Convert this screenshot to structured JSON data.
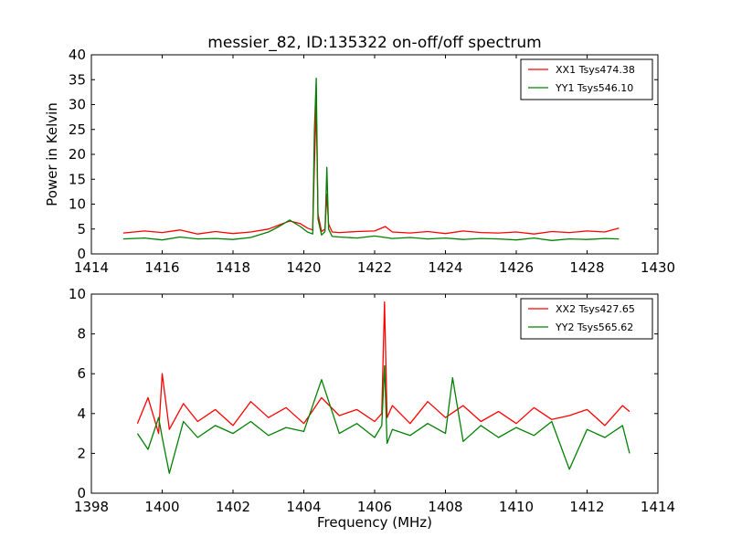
{
  "chart_data": [
    {
      "type": "line",
      "title": "messier_82, ID:135322 on-off/off spectrum",
      "xlabel": "",
      "ylabel": "Power in Kelvin",
      "xlim": [
        1414,
        1430
      ],
      "ylim": [
        0,
        40
      ],
      "xticks": [
        "1414",
        "1416",
        "1418",
        "1420",
        "1422",
        "1424",
        "1426",
        "1428",
        "1430"
      ],
      "yticks": [
        "0",
        "5",
        "10",
        "15",
        "20",
        "25",
        "30",
        "35",
        "40"
      ],
      "legend_position": "top-right",
      "series": [
        {
          "name": "XX1 Tsys474.38",
          "color": "#ff0000",
          "x": [
            1414.9,
            1415.5,
            1416.0,
            1416.5,
            1417.0,
            1417.5,
            1418.0,
            1418.5,
            1419.0,
            1419.3,
            1419.6,
            1419.9,
            1420.1,
            1420.25,
            1420.3,
            1420.35,
            1420.4,
            1420.5,
            1420.6,
            1420.65,
            1420.7,
            1420.8,
            1421.0,
            1421.5,
            1422.0,
            1422.3,
            1422.5,
            1423.0,
            1423.5,
            1424.0,
            1424.5,
            1425.0,
            1425.5,
            1426.0,
            1426.5,
            1427.0,
            1427.5,
            1428.0,
            1428.5,
            1428.9
          ],
          "y": [
            4.2,
            4.6,
            4.3,
            4.8,
            4.0,
            4.5,
            4.1,
            4.4,
            5.0,
            5.8,
            6.6,
            6.1,
            5.2,
            4.8,
            18,
            30,
            8,
            4.5,
            5.0,
            12,
            6,
            4.4,
            4.3,
            4.5,
            4.6,
            5.5,
            4.4,
            4.2,
            4.5,
            4.1,
            4.6,
            4.3,
            4.2,
            4.4,
            4.0,
            4.5,
            4.3,
            4.6,
            4.4,
            5.2
          ]
        },
        {
          "name": "YY1 Tsys546.10",
          "color": "#008000",
          "x": [
            1414.9,
            1415.5,
            1416.0,
            1416.5,
            1417.0,
            1417.5,
            1418.0,
            1418.5,
            1419.0,
            1419.3,
            1419.6,
            1419.9,
            1420.1,
            1420.25,
            1420.3,
            1420.35,
            1420.4,
            1420.5,
            1420.6,
            1420.65,
            1420.7,
            1420.8,
            1421.0,
            1421.5,
            1422.0,
            1422.5,
            1423.0,
            1423.5,
            1424.0,
            1424.5,
            1425.0,
            1425.5,
            1426.0,
            1426.5,
            1427.0,
            1427.5,
            1428.0,
            1428.5,
            1428.9
          ],
          "y": [
            3.0,
            3.2,
            2.8,
            3.4,
            3.0,
            3.1,
            2.9,
            3.3,
            4.4,
            5.5,
            6.8,
            5.5,
            4.4,
            4.0,
            25,
            35.3,
            7,
            3.8,
            4.5,
            17.4,
            5,
            3.5,
            3.4,
            3.2,
            3.6,
            3.1,
            3.3,
            3.0,
            3.2,
            2.9,
            3.1,
            3.0,
            2.8,
            3.2,
            2.7,
            3.0,
            2.9,
            3.1,
            3.0
          ]
        }
      ]
    },
    {
      "type": "line",
      "title": "",
      "xlabel": "Frequency (MHz)",
      "ylabel": "",
      "xlim": [
        1398,
        1414
      ],
      "ylim": [
        0,
        10
      ],
      "xticks": [
        "1398",
        "1400",
        "1402",
        "1404",
        "1406",
        "1408",
        "1410",
        "1412",
        "1414"
      ],
      "yticks": [
        "0",
        "2",
        "4",
        "6",
        "8",
        "10"
      ],
      "legend_position": "top-right",
      "series": [
        {
          "name": "XX2 Tsys427.65",
          "color": "#ff0000",
          "x": [
            1399.3,
            1399.6,
            1399.9,
            1400.0,
            1400.2,
            1400.6,
            1401.0,
            1401.5,
            1402.0,
            1402.5,
            1403.0,
            1403.5,
            1404.0,
            1404.5,
            1405.0,
            1405.5,
            1406.0,
            1406.2,
            1406.28,
            1406.35,
            1406.5,
            1407.0,
            1407.5,
            1408.0,
            1408.5,
            1409.0,
            1409.5,
            1410.0,
            1410.5,
            1411.0,
            1411.5,
            1412.0,
            1412.5,
            1413.0,
            1413.2
          ],
          "y": [
            3.5,
            4.8,
            3.0,
            6.0,
            3.2,
            4.5,
            3.6,
            4.2,
            3.4,
            4.6,
            3.8,
            4.3,
            3.5,
            4.8,
            3.9,
            4.2,
            3.6,
            4.0,
            9.6,
            3.8,
            4.4,
            3.5,
            4.6,
            3.8,
            4.4,
            3.6,
            4.1,
            3.5,
            4.3,
            3.7,
            3.9,
            4.2,
            3.4,
            4.4,
            4.1
          ]
        },
        {
          "name": "YY2 Tsys565.62",
          "color": "#008000",
          "x": [
            1399.3,
            1399.6,
            1399.9,
            1400.0,
            1400.2,
            1400.6,
            1401.0,
            1401.5,
            1402.0,
            1402.5,
            1403.0,
            1403.5,
            1404.0,
            1404.5,
            1405.0,
            1405.5,
            1406.0,
            1406.2,
            1406.28,
            1406.35,
            1406.5,
            1407.0,
            1407.5,
            1408.0,
            1408.2,
            1408.5,
            1409.0,
            1409.5,
            1410.0,
            1410.5,
            1411.0,
            1411.5,
            1412.0,
            1412.5,
            1413.0,
            1413.2
          ],
          "y": [
            3.0,
            2.2,
            3.8,
            2.8,
            1.0,
            3.6,
            2.8,
            3.4,
            3.0,
            3.6,
            2.9,
            3.3,
            3.1,
            5.7,
            3.0,
            3.5,
            2.8,
            3.4,
            6.4,
            2.5,
            3.2,
            2.9,
            3.5,
            3.0,
            5.8,
            2.6,
            3.4,
            2.8,
            3.3,
            2.9,
            3.6,
            1.2,
            3.2,
            2.8,
            3.4,
            2.0
          ]
        }
      ]
    }
  ]
}
